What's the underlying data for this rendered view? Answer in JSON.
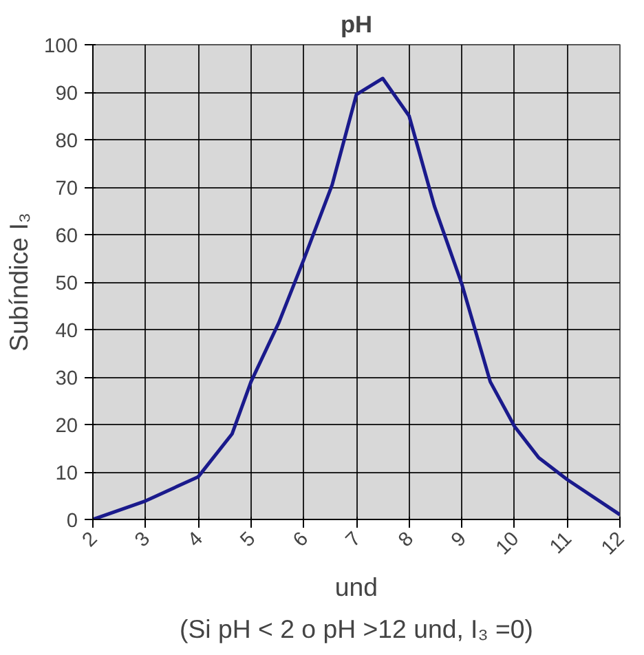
{
  "chart_data": {
    "type": "line",
    "title": "pH",
    "xlabel": "und",
    "ylabel": "Subíndice I₃",
    "annotations": [
      "(Si pH < 2 o pH >12 und, I₃ =0)"
    ],
    "x": [
      2,
      3,
      4,
      4.64,
      5,
      5.53,
      6,
      6.54,
      7,
      7.5,
      8,
      8.48,
      9,
      9.54,
      10,
      10.46,
      11,
      12
    ],
    "series": [
      {
        "color": "#1a1a8c",
        "values": [
          0,
          3.9,
          9,
          18,
          29,
          41.5,
          54.7,
          70.5,
          89.5,
          92.9,
          85,
          66,
          49.6,
          29,
          19.6,
          13,
          8.4,
          1
        ]
      }
    ],
    "xlim": [
      2,
      12
    ],
    "ylim": [
      0,
      100
    ],
    "xticks": [
      2,
      3,
      4,
      5,
      6,
      7,
      8,
      9,
      10,
      11,
      12
    ],
    "yticks": [
      0,
      10,
      20,
      30,
      40,
      50,
      60,
      70,
      80,
      90,
      100
    ],
    "grid": true,
    "marker": "none",
    "line_style": "solid"
  }
}
